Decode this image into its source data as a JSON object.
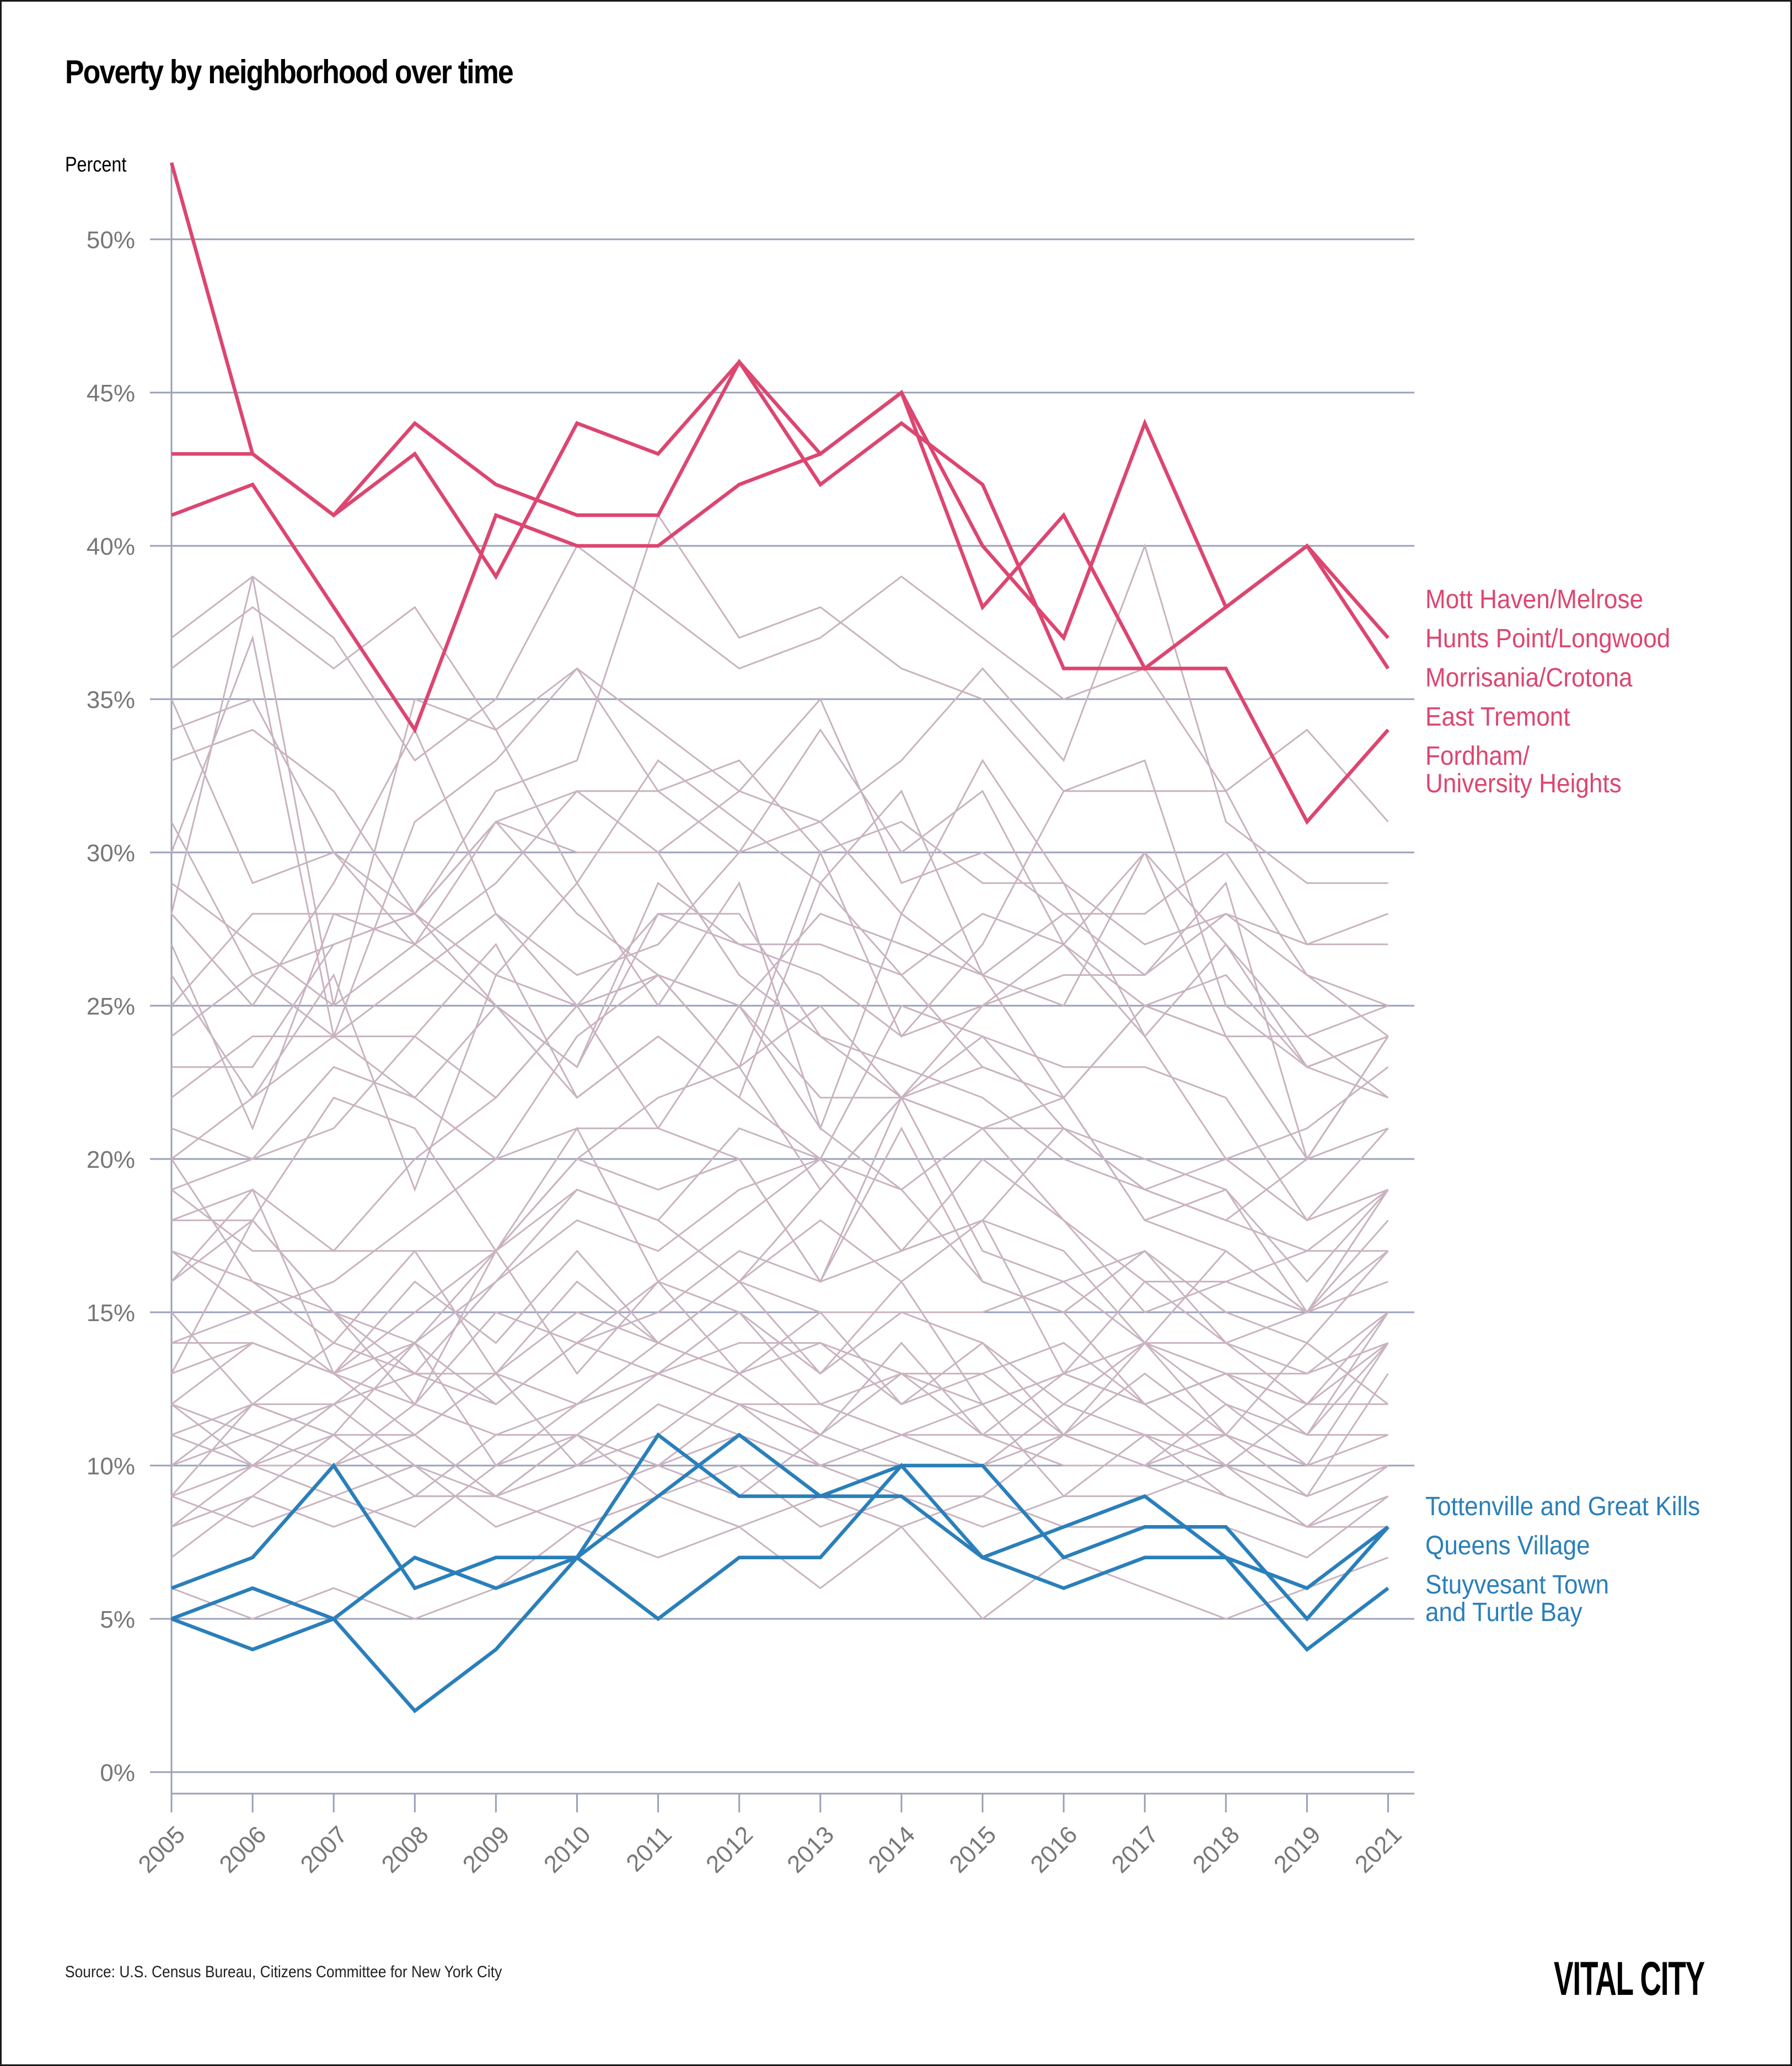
{
  "header": {
    "title": "Poverty by neighborhood over time",
    "unit_label": "Percent"
  },
  "footer": {
    "source": "Source: U.S. Census Bureau, Citizens Committee for New York City",
    "brand": "VITAL CITY"
  },
  "legend": {
    "high": [
      "Mott Haven/Melrose",
      "Hunts Point/Longwood",
      "Morrisania/Crotona",
      "East Tremont",
      "Fordham/",
      "University Heights"
    ],
    "low": [
      "Tottenville and Great Kills",
      "Queens Village",
      "Stuyvesant Town",
      "and Turtle Bay"
    ]
  },
  "colors": {
    "high": "#dc4670",
    "low": "#2a7fba",
    "other": "#c9b3c0",
    "grid": "#9aa0b8",
    "tick_label": "#777777"
  },
  "chart_data": {
    "type": "line",
    "title": "Poverty by neighborhood over time",
    "xlabel": "",
    "ylabel": "Percent",
    "x": [
      "2005",
      "2006",
      "2007",
      "2008",
      "2009",
      "2010",
      "2011",
      "2012",
      "2013",
      "2014",
      "2015",
      "2016",
      "2017",
      "2018",
      "2019",
      "2021"
    ],
    "y_ticks": [
      "0%",
      "5%",
      "10%",
      "15%",
      "20%",
      "25%",
      "30%",
      "35%",
      "40%",
      "45%",
      "50%"
    ],
    "y_tick_values": [
      0,
      5,
      10,
      15,
      20,
      25,
      30,
      35,
      40,
      45,
      50
    ],
    "ylim": [
      0,
      52.5
    ],
    "grid": true,
    "legend_placement": "right, labels at line ends",
    "highlight_high": [
      {
        "name": "Mott Haven/Melrose",
        "values": [
          43,
          43,
          41,
          44,
          42,
          41,
          41,
          46,
          43,
          45,
          40,
          37,
          44,
          38,
          40,
          37
        ]
      },
      {
        "name": "Hunts Point/Longwood; Morrisania/Crotona",
        "values": [
          41,
          42,
          38,
          34,
          41,
          40,
          40,
          42,
          43,
          45,
          38,
          41,
          36,
          38,
          40,
          36
        ]
      },
      {
        "name": "East Tremont; Fordham/University Heights",
        "values": [
          52.5,
          43,
          41,
          43,
          39,
          44,
          43,
          46,
          42,
          44,
          42,
          36,
          36,
          36,
          31,
          34
        ]
      }
    ],
    "highlight_low": [
      {
        "name": "Tottenville and Great Kills",
        "values": [
          6,
          7,
          10,
          6,
          7,
          7,
          9,
          11,
          9,
          9,
          7,
          8,
          9,
          7,
          6,
          8
        ]
      },
      {
        "name": "Queens Village",
        "values": [
          5,
          6,
          5,
          7,
          6,
          7,
          11,
          9,
          9,
          10,
          10,
          7,
          8,
          8,
          5,
          8
        ]
      },
      {
        "name": "Stuyvesant Town and Turtle Bay",
        "values": [
          5,
          4,
          5,
          2,
          4,
          7,
          5,
          7,
          7,
          10,
          7,
          6,
          7,
          7,
          4,
          6
        ]
      }
    ],
    "other_neighborhoods": [
      [
        37,
        39,
        37,
        33,
        35,
        40,
        38,
        36,
        37,
        39,
        37,
        35,
        36,
        32,
        34,
        31
      ],
      [
        36,
        38,
        36,
        38,
        34,
        36,
        34,
        32,
        31,
        33,
        36,
        33,
        40,
        31,
        29,
        29
      ],
      [
        34,
        35,
        30,
        28,
        32,
        33,
        41,
        37,
        38,
        36,
        35,
        32,
        32,
        32,
        27,
        28
      ],
      [
        35,
        29,
        30,
        27,
        29,
        32,
        32,
        33,
        30,
        31,
        29,
        29,
        27,
        28,
        27,
        27
      ],
      [
        33,
        34,
        32,
        28,
        31,
        30,
        30,
        32,
        35,
        29,
        30,
        28,
        26,
        28,
        26,
        24
      ],
      [
        30,
        37,
        24,
        31,
        33,
        36,
        32,
        30,
        34,
        30,
        32,
        27,
        25,
        26,
        23,
        24
      ],
      [
        28,
        39,
        25,
        35,
        34,
        29,
        33,
        31,
        29,
        32,
        26,
        28,
        28,
        30,
        26,
        25
      ],
      [
        28,
        25,
        29,
        34,
        28,
        26,
        27,
        30,
        31,
        28,
        33,
        29,
        24,
        27,
        23,
        24
      ],
      [
        27,
        21,
        28,
        27,
        31,
        28,
        26,
        25,
        28,
        27,
        26,
        25,
        30,
        27,
        24,
        22
      ],
      [
        24,
        26,
        24,
        26,
        28,
        25,
        26,
        23,
        30,
        24,
        27,
        32,
        33,
        25,
        23,
        22
      ],
      [
        23,
        23,
        27,
        28,
        25,
        23,
        29,
        27,
        26,
        24,
        25,
        26,
        26,
        29,
        20,
        24
      ],
      [
        21,
        20,
        23,
        22,
        25,
        23,
        28,
        27,
        27,
        26,
        28,
        27,
        24,
        20,
        21,
        23
      ],
      [
        20,
        22,
        26,
        19,
        26,
        29,
        25,
        29,
        21,
        28,
        26,
        22,
        25,
        24,
        20,
        21
      ],
      [
        19,
        20,
        21,
        24,
        27,
        22,
        24,
        22,
        20,
        25,
        24,
        23,
        23,
        22,
        18,
        19
      ],
      [
        18,
        18,
        22,
        21,
        17,
        20,
        22,
        23,
        25,
        22,
        21,
        21,
        19,
        18,
        17,
        19
      ],
      [
        18,
        19,
        17,
        20,
        22,
        25,
        21,
        20,
        16,
        22,
        24,
        21,
        20,
        19,
        16,
        19
      ],
      [
        17,
        15,
        16,
        18,
        20,
        21,
        21,
        25,
        21,
        19,
        21,
        22,
        18,
        17,
        15,
        18
      ],
      [
        17,
        16,
        14,
        17,
        17,
        20,
        19,
        20,
        16,
        17,
        20,
        18,
        15,
        16,
        17,
        17
      ],
      [
        16,
        18,
        15,
        13,
        16,
        19,
        18,
        16,
        19,
        22,
        17,
        16,
        17,
        15,
        14,
        17
      ],
      [
        14,
        15,
        13,
        14,
        16,
        18,
        17,
        19,
        20,
        17,
        18,
        17,
        14,
        17,
        15,
        16
      ],
      [
        14,
        14,
        13,
        16,
        14,
        17,
        14,
        16,
        18,
        16,
        18,
        13,
        16,
        14,
        12,
        15
      ],
      [
        13,
        14,
        13,
        12,
        15,
        14,
        15,
        17,
        16,
        21,
        16,
        15,
        12,
        13,
        11,
        15
      ],
      [
        12,
        14,
        13,
        11,
        13,
        15,
        14,
        16,
        15,
        15,
        14,
        12,
        14,
        12,
        10,
        14
      ],
      [
        12,
        11,
        12,
        14,
        12,
        14,
        16,
        13,
        14,
        13,
        13,
        14,
        12,
        13,
        11,
        14
      ],
      [
        11,
        12,
        12,
        13,
        12,
        14,
        13,
        14,
        14,
        12,
        13,
        11,
        11,
        11,
        9,
        13
      ],
      [
        11,
        10,
        11,
        14,
        10,
        12,
        13,
        12,
        11,
        13,
        12,
        13,
        12,
        13,
        12,
        12
      ],
      [
        10,
        11,
        10,
        12,
        11,
        11,
        13,
        12,
        12,
        11,
        11,
        10,
        10,
        12,
        11,
        11
      ],
      [
        9,
        12,
        11,
        9,
        11,
        12,
        13,
        15,
        12,
        13,
        11,
        11,
        14,
        11,
        10,
        10
      ],
      [
        9,
        10,
        12,
        10,
        9,
        10,
        12,
        11,
        10,
        11,
        10,
        12,
        11,
        10,
        9,
        10
      ],
      [
        8,
        10,
        9,
        8,
        10,
        11,
        10,
        11,
        10,
        9,
        9,
        11,
        10,
        9,
        8,
        9
      ],
      [
        8,
        9,
        8,
        9,
        9,
        11,
        9,
        8,
        9,
        8,
        9,
        8,
        8,
        8,
        7,
        9
      ],
      [
        7,
        9,
        11,
        9,
        9,
        8,
        9,
        10,
        8,
        9,
        8,
        9,
        9,
        10,
        8,
        8
      ],
      [
        6,
        5,
        6,
        5,
        6,
        8,
        7,
        8,
        6,
        8,
        5,
        7,
        6,
        5,
        6,
        7
      ],
      [
        13,
        18,
        15,
        12,
        17,
        13,
        16,
        15,
        13,
        16,
        12,
        13,
        12,
        10,
        12,
        14
      ],
      [
        16,
        19,
        13,
        15,
        17,
        21,
        16,
        18,
        20,
        17,
        18,
        21,
        19,
        18,
        20,
        24
      ],
      [
        22,
        24,
        24,
        22,
        20,
        24,
        26,
        25,
        22,
        22,
        21,
        18,
        16,
        16,
        15,
        19
      ],
      [
        25,
        28,
        28,
        28,
        26,
        25,
        28,
        28,
        24,
        23,
        22,
        20,
        19,
        20,
        18,
        21
      ],
      [
        29,
        27,
        25,
        27,
        25,
        22,
        24,
        22,
        29,
        26,
        23,
        22,
        25,
        24,
        24,
        25
      ],
      [
        31,
        26,
        27,
        28,
        31,
        32,
        30,
        26,
        24,
        22,
        25,
        27,
        30,
        24,
        20,
        24
      ],
      [
        26,
        22,
        24,
        24,
        22,
        25,
        26,
        23,
        19,
        22,
        23,
        22,
        18,
        19,
        15,
        17
      ],
      [
        15,
        12,
        14,
        13,
        13,
        12,
        14,
        13,
        11,
        14,
        11,
        13,
        14,
        13,
        13,
        15
      ],
      [
        19,
        17,
        17,
        17,
        13,
        16,
        14,
        16,
        13,
        15,
        15,
        16,
        14,
        14,
        15,
        19
      ],
      [
        10,
        12,
        11,
        11,
        13,
        10,
        11,
        13,
        15,
        12,
        14,
        11,
        13,
        11,
        14,
        12
      ],
      [
        20,
        16,
        15,
        14,
        17,
        19,
        18,
        21,
        20,
        19,
        16,
        15,
        17,
        14,
        13,
        14
      ],
      [
        12,
        10,
        10,
        11,
        9,
        11,
        10,
        12,
        10,
        11,
        12,
        9,
        11,
        9,
        8,
        10
      ],
      [
        9,
        8,
        9,
        10,
        8,
        9,
        10,
        9,
        11,
        10,
        10,
        11,
        10,
        11,
        10,
        11
      ]
    ]
  }
}
